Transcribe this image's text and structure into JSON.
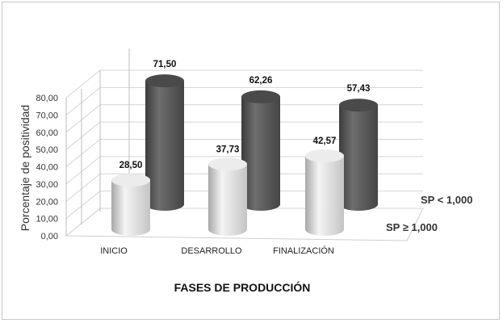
{
  "chart_data": {
    "type": "bar",
    "style": "3d-cylinder",
    "xlabel": "FASES DE PRODUCCIÓN",
    "ylabel": "Porcentaje de positividad",
    "ylim": [
      0,
      80
    ],
    "yticks": [
      "0,00",
      "10,00",
      "20,00",
      "30,00",
      "40,00",
      "50,00",
      "60,00",
      "70,00",
      "80,00"
    ],
    "categories": [
      "INICIO",
      "DESARROLLO",
      "FINALIZACIÓN"
    ],
    "series": [
      {
        "name": "SP ≥ 1,000",
        "values": [
          28.5,
          37.73,
          42.57
        ],
        "labels": [
          "28,50",
          "37,73",
          "42,57"
        ],
        "color": "#d9d9d9"
      },
      {
        "name": "SP < 1,000",
        "values": [
          71.5,
          62.26,
          57.43
        ],
        "labels": [
          "71,50",
          "62,26",
          "57,43"
        ],
        "color": "#555555"
      }
    ],
    "grid": true
  }
}
